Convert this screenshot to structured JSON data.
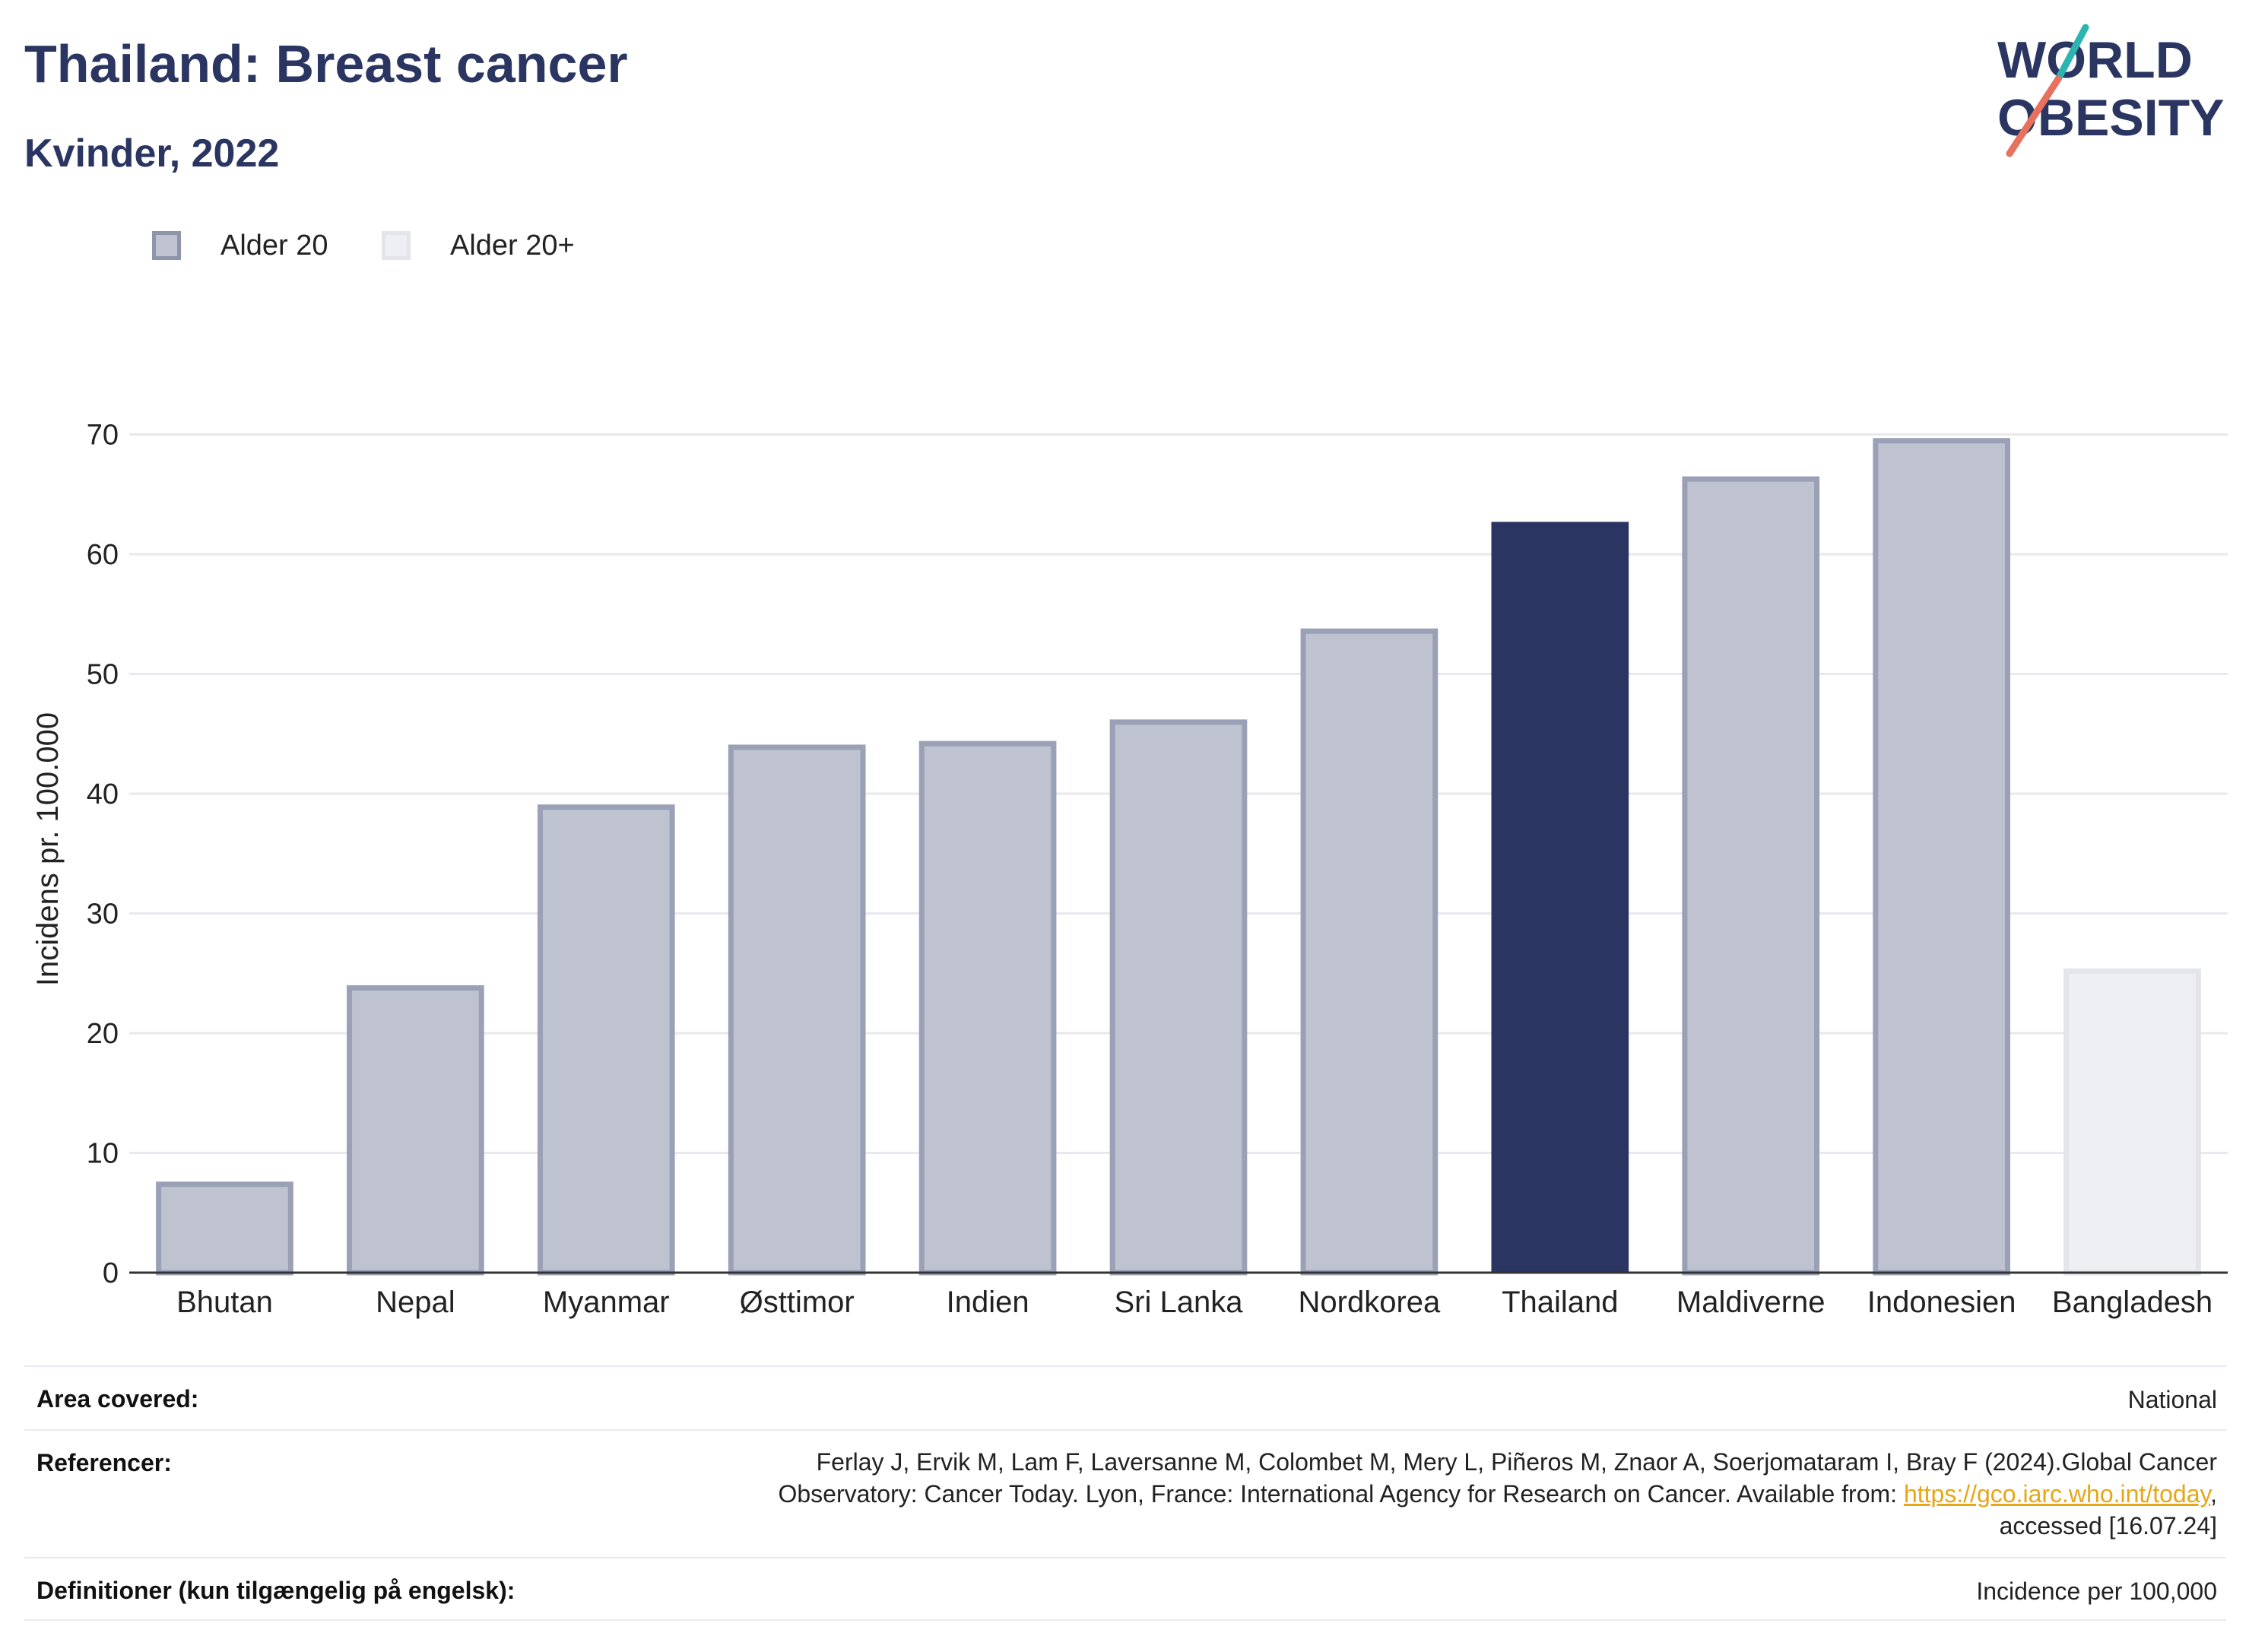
{
  "header": {
    "title": "Thailand: Breast cancer",
    "subtitle": "Kvinder, 2022"
  },
  "logo": {
    "line1": "WORLD",
    "line2": "OBESITY",
    "colors": {
      "text": "#2a3561",
      "slash_teal": "#2bb5b0",
      "slash_coral": "#e8705f"
    }
  },
  "legend": {
    "items": [
      {
        "label": "Alder 20",
        "fill": "#bfc3d0",
        "stroke": "#8e95ab"
      },
      {
        "label": "Alder 20+",
        "fill": "#eeeff3",
        "stroke": "#e3e5eb"
      }
    ]
  },
  "chart_data": {
    "type": "bar",
    "categories": [
      "Bhutan",
      "Nepal",
      "Myanmar",
      "Østtimor",
      "Indien",
      "Sri Lanka",
      "Nordkorea",
      "Thailand",
      "Maldiverne",
      "Indonesien",
      "Bangladesh"
    ],
    "values": [
      7.6,
      24.0,
      39.1,
      44.1,
      44.4,
      46.2,
      53.8,
      62.7,
      66.5,
      69.7,
      25.4
    ],
    "groups": [
      "Alder 20",
      "Alder 20",
      "Alder 20",
      "Alder 20",
      "Alder 20",
      "Alder 20",
      "Alder 20",
      "Alder 20",
      "Alder 20",
      "Alder 20",
      "Alder 20+"
    ],
    "highlight": "Thailand",
    "title": "",
    "xlabel": "",
    "ylabel": "Incidens pr. 100.000",
    "ylim": [
      0,
      72
    ],
    "yticks": [
      0,
      10,
      20,
      30,
      40,
      50,
      60,
      70
    ],
    "grid": true,
    "legend_position": "top-left",
    "colors": {
      "default_fill": "#bfc3d0",
      "default_stroke": "#9aa0b5",
      "highlight_fill": "#2a3561",
      "plus_fill": "#eeeff3",
      "plus_stroke": "#e3e5eb",
      "grid": "#e8e8ee",
      "axis": "#333333"
    }
  },
  "footer": {
    "rows": [
      {
        "label": "Area covered:",
        "value_lines": [
          "National"
        ]
      },
      {
        "label": "Referencer:",
        "value_lines": [
          "Ferlay J, Ervik M, Lam F, Laversanne M, Colombet M, Mery L, Piñeros M, Znaor A, Soerjomataram I, Bray F (2024).Global Cancer",
          "Observatory: Cancer Today. Lyon, France: International Agency for Research on Cancer. Available from: ",
          "accessed [16.07.24]"
        ],
        "link_text": "https://gco.iarc.who.int/today",
        "link_suffix": ","
      },
      {
        "label": "Definitioner (kun tilgængelig på engelsk):",
        "value_lines": [
          "Incidence per 100,000"
        ]
      }
    ]
  }
}
